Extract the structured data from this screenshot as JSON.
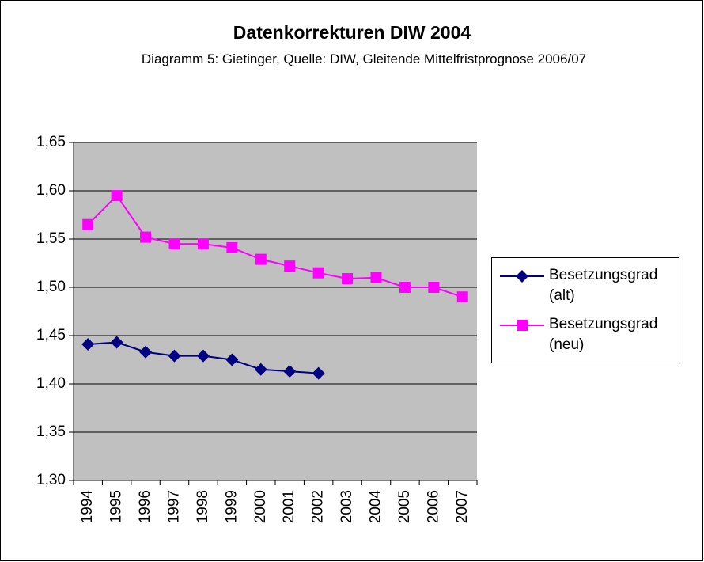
{
  "chart_data": {
    "type": "line",
    "title": "Datenkorrekturen DIW 2004",
    "subtitle": "Diagramm 5: Gietinger, Quelle: DIW, Gleitende Mittelfristprognose 2006/07",
    "categories": [
      "1994",
      "1995",
      "1996",
      "1997",
      "1998",
      "1999",
      "2000",
      "2001",
      "2002",
      "2003",
      "2004",
      "2005",
      "2006",
      "2007"
    ],
    "series": [
      {
        "name": "Besetzungsgrad (alt)",
        "color": "#000080",
        "marker": "diamond",
        "values": [
          1.441,
          1.443,
          1.433,
          1.429,
          1.429,
          1.425,
          1.415,
          1.413,
          1.411,
          null,
          null,
          null,
          null,
          null
        ]
      },
      {
        "name": "Besetzungsgrad (neu)",
        "color": "#ff00ff",
        "marker": "square",
        "values": [
          1.565,
          1.595,
          1.552,
          1.545,
          1.545,
          1.541,
          1.529,
          1.522,
          1.515,
          1.509,
          1.51,
          1.5,
          1.5,
          1.49
        ]
      }
    ],
    "ylim": [
      1.3,
      1.65
    ],
    "yticks": [
      {
        "value": 1.3,
        "label": "1,30"
      },
      {
        "value": 1.35,
        "label": "1,35"
      },
      {
        "value": 1.4,
        "label": "1,40"
      },
      {
        "value": 1.45,
        "label": "1,45"
      },
      {
        "value": 1.5,
        "label": "1,50"
      },
      {
        "value": 1.55,
        "label": "1,55"
      },
      {
        "value": 1.6,
        "label": "1,60"
      },
      {
        "value": 1.65,
        "label": "1,65"
      }
    ],
    "grid": true,
    "legend": "right"
  }
}
